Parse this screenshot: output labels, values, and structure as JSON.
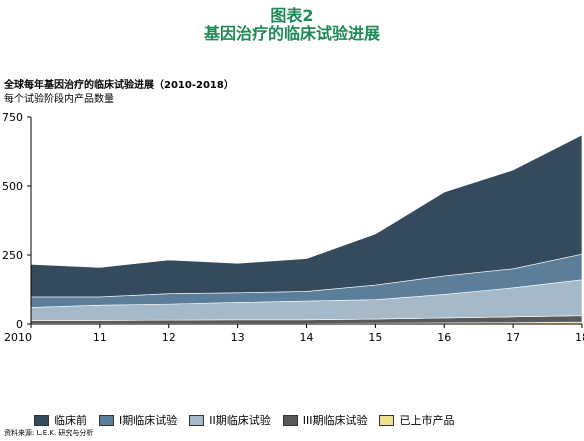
{
  "figure": {
    "number": "图表2",
    "title": "基因治疗的临床试验进展"
  },
  "chart_data": {
    "type": "area",
    "stacked": true,
    "title": "全球每年基因治疗的临床试验进展（2010-2018）",
    "subtitle": "每个试验阶段内产品数量",
    "x": [
      "2010",
      "11",
      "12",
      "13",
      "14",
      "15",
      "16",
      "17",
      "18"
    ],
    "ylim": [
      0,
      750
    ],
    "yticks": [
      0,
      250,
      500,
      750
    ],
    "grid": false,
    "legend_position": "bottom",
    "series": [
      {
        "name": "已上市产品",
        "color": "#f2df96",
        "values": [
          2,
          2,
          2,
          2,
          2,
          3,
          4,
          5,
          7
        ]
      },
      {
        "name": "III期临床试验",
        "color": "#58595b",
        "values": [
          10,
          11,
          12,
          13,
          13,
          15,
          18,
          21,
          23
        ]
      },
      {
        "name": "II期临床试验",
        "color": "#a6b9c8",
        "values": [
          48,
          55,
          58,
          63,
          68,
          70,
          85,
          105,
          130
        ]
      },
      {
        "name": "I期临床试验",
        "color": "#5b7f9a",
        "values": [
          38,
          30,
          38,
          35,
          35,
          53,
          67,
          69,
          93
        ]
      },
      {
        "name": "临床前",
        "color": "#354a5c",
        "values": [
          118,
          107,
          122,
          107,
          119,
          185,
          304,
          358,
          432
        ]
      }
    ],
    "legend_order": [
      "临床前",
      "I期临床试验",
      "II期临床试验",
      "III期临床试验",
      "已上市产品"
    ]
  },
  "source": "资料来源: L.E.K. 研究与分析"
}
